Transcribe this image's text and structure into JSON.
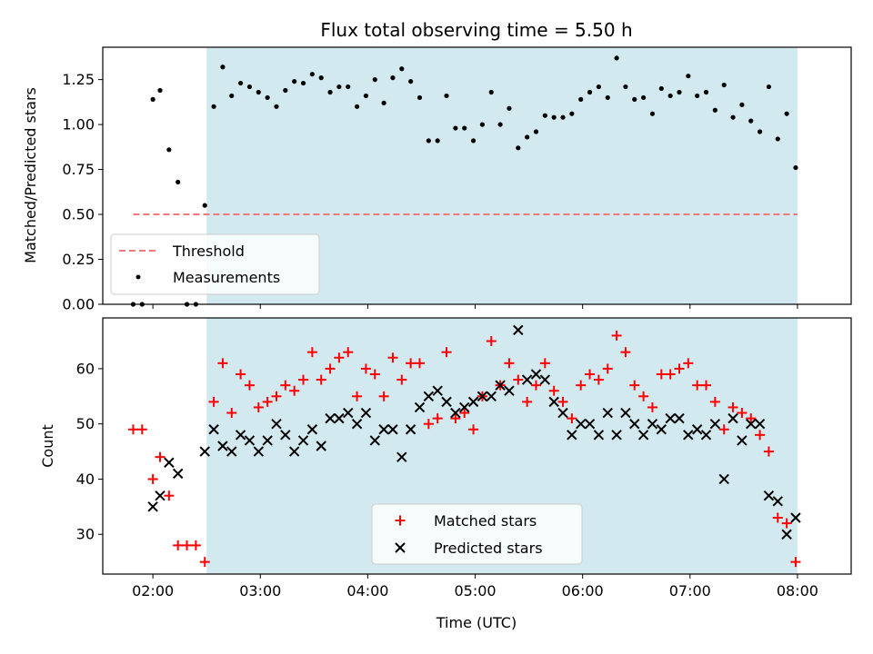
{
  "chart_data": {
    "title": "Flux total observing time = 5.50 h",
    "xlabel": "Time (UTC)",
    "x_ticks": [
      "02:00",
      "03:00",
      "04:00",
      "05:00",
      "06:00",
      "07:00",
      "08:00"
    ],
    "x_range": [
      "01:32",
      "08:30"
    ],
    "shaded_span": [
      "02:30",
      "08:00"
    ],
    "colors": {
      "shade": "#d3e9f0",
      "matched": "#ff0000",
      "predicted": "#000000",
      "threshold": "#f07878",
      "measurement": "#000000"
    },
    "ratio_panel": {
      "type": "scatter",
      "ylabel": "Matched/Predicted stars",
      "ylim": [
        0,
        1.43
      ],
      "y_ticks": [
        "0.00",
        "0.25",
        "0.50",
        "0.75",
        "1.00",
        "1.25"
      ],
      "legend_position": "lower-left",
      "legend": [
        "Threshold",
        "Measurements"
      ],
      "threshold": {
        "name": "Threshold",
        "value": 0.5,
        "x": [
          "01:49",
          "08:00"
        ]
      },
      "measurements": {
        "name": "Measurements",
        "x": [
          "01:49",
          "01:54",
          "02:00",
          "02:04",
          "02:09",
          "02:14",
          "02:19",
          "02:24",
          "02:29",
          "02:34",
          "02:39",
          "02:44",
          "02:49",
          "02:54",
          "02:59",
          "03:04",
          "03:09",
          "03:14",
          "03:19",
          "03:24",
          "03:29",
          "03:34",
          "03:39",
          "03:44",
          "03:49",
          "03:54",
          "03:59",
          "04:04",
          "04:09",
          "04:14",
          "04:19",
          "04:24",
          "04:29",
          "04:34",
          "04:39",
          "04:44",
          "04:49",
          "04:54",
          "04:59",
          "05:04",
          "05:09",
          "05:14",
          "05:19",
          "05:24",
          "05:29",
          "05:34",
          "05:39",
          "05:44",
          "05:49",
          "05:54",
          "05:59",
          "06:04",
          "06:09",
          "06:14",
          "06:19",
          "06:24",
          "06:29",
          "06:34",
          "06:39",
          "06:44",
          "06:49",
          "06:54",
          "06:59",
          "07:04",
          "07:09",
          "07:14",
          "07:19",
          "07:24",
          "07:29",
          "07:34",
          "07:39",
          "07:44",
          "07:49",
          "07:54",
          "07:59"
        ],
        "y": [
          0.0,
          0.0,
          1.14,
          1.19,
          0.86,
          0.68,
          0.0,
          0.0,
          0.55,
          1.1,
          1.32,
          1.16,
          1.23,
          1.21,
          1.18,
          1.15,
          1.1,
          1.19,
          1.24,
          1.23,
          1.28,
          1.26,
          1.18,
          1.21,
          1.21,
          1.1,
          1.16,
          1.25,
          1.12,
          1.26,
          1.31,
          1.24,
          1.15,
          0.91,
          0.91,
          1.16,
          0.98,
          0.98,
          0.91,
          1.0,
          1.18,
          1.0,
          1.09,
          0.87,
          0.93,
          0.96,
          1.05,
          1.04,
          1.04,
          1.06,
          1.14,
          1.18,
          1.21,
          1.15,
          1.37,
          1.21,
          1.14,
          1.15,
          1.06,
          1.2,
          1.16,
          1.18,
          1.27,
          1.16,
          1.18,
          1.08,
          1.22,
          1.04,
          1.11,
          1.02,
          0.96,
          1.21,
          0.92,
          1.06,
          0.76
        ]
      }
    },
    "count_panel": {
      "type": "scatter",
      "ylabel": "Count",
      "ylim": [
        22.8,
        69.2
      ],
      "y_ticks": [
        "30",
        "40",
        "50",
        "60"
      ],
      "legend_position": "lower-center",
      "legend": [
        "Matched stars",
        "Predicted stars"
      ],
      "series": [
        {
          "name": "Matched stars",
          "marker": "plus",
          "x": [
            "01:49",
            "01:54",
            "02:00",
            "02:04",
            "02:09",
            "02:14",
            "02:19",
            "02:24",
            "02:29",
            "02:34",
            "02:39",
            "02:44",
            "02:49",
            "02:54",
            "02:59",
            "03:04",
            "03:09",
            "03:14",
            "03:19",
            "03:24",
            "03:29",
            "03:34",
            "03:39",
            "03:44",
            "03:49",
            "03:54",
            "03:59",
            "04:04",
            "04:09",
            "04:14",
            "04:19",
            "04:24",
            "04:29",
            "04:34",
            "04:39",
            "04:44",
            "04:49",
            "04:54",
            "04:59",
            "05:04",
            "05:09",
            "05:14",
            "05:19",
            "05:24",
            "05:29",
            "05:34",
            "05:39",
            "05:44",
            "05:49",
            "05:54",
            "05:59",
            "06:04",
            "06:09",
            "06:14",
            "06:19",
            "06:24",
            "06:29",
            "06:34",
            "06:39",
            "06:44",
            "06:49",
            "06:54",
            "06:59",
            "07:04",
            "07:09",
            "07:14",
            "07:19",
            "07:24",
            "07:29",
            "07:34",
            "07:39",
            "07:44",
            "07:49",
            "07:54",
            "07:59"
          ],
          "y": [
            49,
            49,
            40,
            44,
            37,
            28,
            28,
            28,
            25,
            54,
            61,
            52,
            59,
            57,
            53,
            54,
            55,
            57,
            56,
            58,
            63,
            58,
            60,
            62,
            63,
            55,
            60,
            59,
            55,
            62,
            58,
            61,
            61,
            50,
            51,
            63,
            51,
            52,
            49,
            55,
            65,
            57,
            61,
            58,
            54,
            57,
            61,
            56,
            54,
            51,
            57,
            59,
            58,
            60,
            66,
            63,
            57,
            55,
            53,
            59,
            59,
            60,
            61,
            57,
            57,
            54,
            49,
            53,
            52,
            51,
            48,
            45,
            33,
            32,
            25
          ]
        },
        {
          "name": "Predicted stars",
          "marker": "x",
          "x": [
            "02:00",
            "02:04",
            "02:09",
            "02:14",
            "02:29",
            "02:34",
            "02:39",
            "02:44",
            "02:49",
            "02:54",
            "02:59",
            "03:04",
            "03:09",
            "03:14",
            "03:19",
            "03:24",
            "03:29",
            "03:34",
            "03:39",
            "03:44",
            "03:49",
            "03:54",
            "03:59",
            "04:04",
            "04:09",
            "04:14",
            "04:19",
            "04:24",
            "04:29",
            "04:34",
            "04:39",
            "04:44",
            "04:49",
            "04:54",
            "04:59",
            "05:04",
            "05:09",
            "05:14",
            "05:19",
            "05:24",
            "05:29",
            "05:34",
            "05:39",
            "05:44",
            "05:49",
            "05:54",
            "05:59",
            "06:04",
            "06:09",
            "06:14",
            "06:19",
            "06:24",
            "06:29",
            "06:34",
            "06:39",
            "06:44",
            "06:49",
            "06:54",
            "06:59",
            "07:04",
            "07:09",
            "07:14",
            "07:19",
            "07:24",
            "07:29",
            "07:34",
            "07:39",
            "07:44",
            "07:49",
            "07:54",
            "07:59"
          ],
          "y": [
            35,
            37,
            43,
            41,
            45,
            49,
            46,
            45,
            48,
            47,
            45,
            47,
            50,
            48,
            45,
            47,
            49,
            46,
            51,
            51,
            52,
            50,
            52,
            47,
            49,
            49,
            44,
            49,
            53,
            55,
            56,
            54,
            52,
            53,
            54,
            55,
            55,
            57,
            56,
            67,
            58,
            59,
            58,
            54,
            52,
            48,
            50,
            50,
            48,
            52,
            48,
            52,
            50,
            48,
            50,
            49,
            51,
            51,
            48,
            49,
            48,
            50,
            40,
            51,
            47,
            50,
            50,
            37,
            36,
            30,
            33
          ]
        }
      ]
    }
  }
}
